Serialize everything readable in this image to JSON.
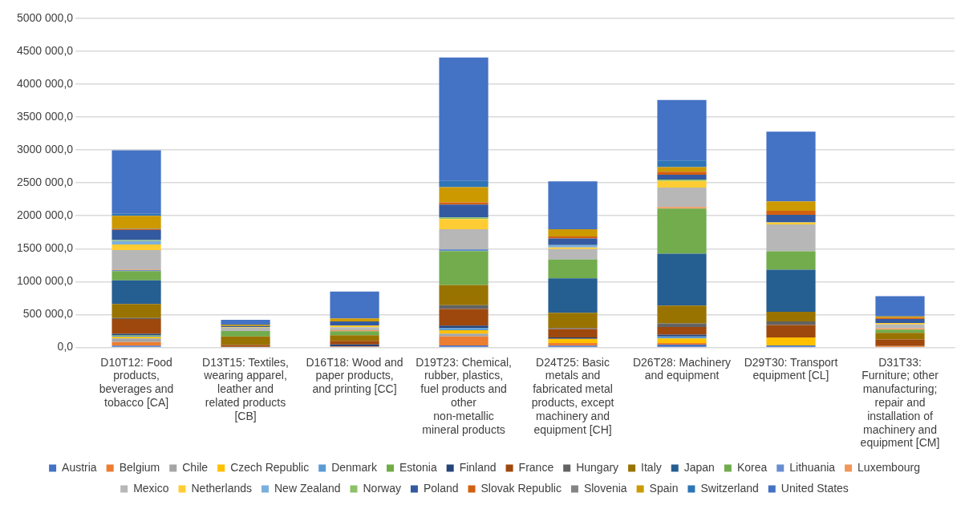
{
  "chart_data": {
    "type": "bar",
    "stacked": true,
    "grid": "y",
    "legend": "bottom",
    "categories": [
      "D10T12: Food products, beverages and tobacco [CA]",
      "D13T15: Textiles, wearing apparel, leather and related products [CB]",
      "D16T18: Wood and paper products, and printing [CC]",
      "D19T23: Chemical, rubber, plastics, fuel products and other non-metallic mineral products",
      "D24T25: Basic metals and fabricated metal products, except machinery and equipment [CH]",
      "D26T28: Machinery and equipment",
      "D29T30: Transport equipment [CL]",
      "D31T33: Furniture; other manufacturing; repair and installation of machinery and equipment [CM]"
    ],
    "ylim": [
      0,
      5000000
    ],
    "yticks": [
      {
        "value": 0,
        "label": "0,0"
      },
      {
        "value": 500000,
        "label": "500 000,0"
      },
      {
        "value": 1000000,
        "label": "1000 000,0"
      },
      {
        "value": 1500000,
        "label": "1500 000,0"
      },
      {
        "value": 2000000,
        "label": "2000 000,0"
      },
      {
        "value": 2500000,
        "label": "2500 000,0"
      },
      {
        "value": 3000000,
        "label": "3000 000,0"
      },
      {
        "value": 3500000,
        "label": "3500 000,0"
      },
      {
        "value": 4000000,
        "label": "4000 000,0"
      },
      {
        "value": 4500000,
        "label": "4500 000,0"
      },
      {
        "value": 5000000,
        "label": "5000 000,0"
      }
    ],
    "series": [
      {
        "name": "Austria",
        "color": "#4472c4",
        "values": [
          25000,
          0,
          0,
          30000,
          25000,
          40000,
          30000,
          0
        ]
      },
      {
        "name": "Belgium",
        "color": "#ed7d31",
        "values": [
          55000,
          0,
          15000,
          135000,
          40000,
          25000,
          0,
          20000
        ]
      },
      {
        "name": "Chile",
        "color": "#a5a5a5",
        "values": [
          55000,
          0,
          0,
          45000,
          0,
          0,
          0,
          0
        ]
      },
      {
        "name": "Czech Republic",
        "color": "#ffc000",
        "values": [
          25000,
          null,
          0,
          50000,
          65000,
          70000,
          120000,
          0
        ]
      },
      {
        "name": "Denmark",
        "color": "#5b9bd5",
        "values": [
          15000,
          0,
          0,
          35000,
          0,
          30000,
          0,
          0
        ]
      },
      {
        "name": "Estonia",
        "color": "#70ad47",
        "values": [
          10000,
          0,
          0,
          0,
          0,
          0,
          0,
          0
        ]
      },
      {
        "name": "Finland",
        "color": "#264478",
        "values": [
          20000,
          0,
          30000,
          35000,
          20000,
          30000,
          0,
          0
        ]
      },
      {
        "name": "France",
        "color": "#9e480e",
        "values": [
          225000,
          35000,
          55000,
          255000,
          130000,
          115000,
          190000,
          100000
        ]
      },
      {
        "name": "Hungary",
        "color": "#636363",
        "values": [
          15000,
          null,
          0,
          55000,
          15000,
          55000,
          55000,
          0
        ]
      },
      {
        "name": "Italy",
        "color": "#997300",
        "values": [
          215000,
          130000,
          85000,
          305000,
          230000,
          270000,
          145000,
          100000
        ]
      },
      {
        "name": "Japan",
        "color": "#255e91",
        "values": [
          360000,
          null,
          0,
          0,
          525000,
          790000,
          640000,
          0
        ]
      },
      {
        "name": "Korea",
        "color": "#72ac4d",
        "values": [
          140000,
          85000,
          60000,
          520000,
          285000,
          685000,
          280000,
          50000
        ]
      },
      {
        "name": "Lithuania",
        "color": "#698ed0",
        "values": [
          15000,
          0,
          0,
          25000,
          0,
          0,
          0,
          0
        ]
      },
      {
        "name": "Luxembourg",
        "color": "#f1975a",
        "values": [
          10000,
          0,
          15000,
          0,
          0,
          25000,
          0,
          20000
        ]
      },
      {
        "name": "Mexico",
        "color": "#b7b7b7",
        "values": [
          295000,
          50000,
          45000,
          305000,
          160000,
          295000,
          410000,
          60000
        ]
      },
      {
        "name": "Netherlands",
        "color": "#ffcd33",
        "values": [
          85000,
          10000,
          30000,
          155000,
          25000,
          100000,
          30000,
          20000
        ]
      },
      {
        "name": "New Zealand",
        "color": "#7cafdd",
        "values": [
          50000,
          0,
          0,
          0,
          35000,
          0,
          0,
          0
        ]
      },
      {
        "name": "Norway",
        "color": "#8cc168",
        "values": [
          15000,
          0,
          0,
          25000,
          0,
          20000,
          0,
          0
        ]
      },
      {
        "name": "Poland",
        "color": "#335aa1",
        "values": [
          155000,
          15000,
          60000,
          195000,
          100000,
          75000,
          115000,
          60000
        ]
      },
      {
        "name": "Slovak Republic",
        "color": "#d26012",
        "values": [
          10000,
          null,
          0,
          35000,
          30000,
          45000,
          60000,
          20000
        ]
      },
      {
        "name": "Slovenia",
        "color": "#848484",
        "values": [
          10000,
          0,
          0,
          0,
          0,
          0,
          0,
          0
        ]
      },
      {
        "name": "Spain",
        "color": "#cc9a00",
        "values": [
          195000,
          20000,
          45000,
          230000,
          110000,
          70000,
          145000,
          20000
        ]
      },
      {
        "name": "Switzerland",
        "color": "#2e75b6",
        "values": [
          30000,
          0,
          0,
          100000,
          0,
          100000,
          0,
          0
        ]
      },
      {
        "name": "United States",
        "color": "#4472c4",
        "values": [
          965000,
          75000,
          410000,
          1870000,
          730000,
          920000,
          1060000,
          310000
        ]
      }
    ]
  }
}
